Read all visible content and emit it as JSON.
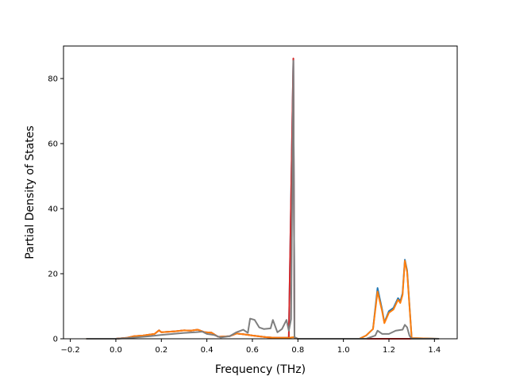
{
  "chart_data": {
    "type": "line",
    "title": "",
    "xlabel": "Frequency (THz)",
    "ylabel": "Partial Density of States",
    "xlim": [
      -0.23,
      1.5
    ],
    "ylim": [
      0,
      90
    ],
    "xticks": [
      -0.2,
      0.0,
      0.2,
      0.4,
      0.6,
      0.8,
      1.0,
      1.2,
      1.4
    ],
    "xtick_labels": [
      "−0.2",
      "0.0",
      "0.2",
      "0.4",
      "0.6",
      "0.8",
      "1.0",
      "1.2",
      "1.4"
    ],
    "yticks": [
      0,
      20,
      40,
      60,
      80
    ],
    "ytick_labels": [
      "0",
      "20",
      "40",
      "60",
      "80"
    ],
    "grid": false,
    "legend": "none",
    "series": [
      {
        "color": "#1f77b4",
        "points": [
          [
            -0.13,
            0
          ],
          [
            0.0,
            0
          ],
          [
            0.05,
            0.3
          ],
          [
            0.08,
            0.8
          ],
          [
            0.12,
            1.0
          ],
          [
            0.17,
            1.5
          ],
          [
            0.19,
            2.6
          ],
          [
            0.2,
            2.0
          ],
          [
            0.26,
            2.3
          ],
          [
            0.3,
            2.6
          ],
          [
            0.33,
            2.5
          ],
          [
            0.36,
            2.8
          ],
          [
            0.39,
            2.0
          ],
          [
            0.42,
            1.9
          ],
          [
            0.45,
            0.6
          ],
          [
            0.5,
            0.8
          ],
          [
            0.53,
            1.6
          ],
          [
            0.56,
            1.4
          ],
          [
            0.6,
            1.0
          ],
          [
            0.66,
            0.5
          ],
          [
            0.7,
            0.3
          ],
          [
            0.76,
            0.3
          ],
          [
            0.78,
            86
          ],
          [
            0.785,
            0.4
          ],
          [
            0.8,
            0
          ],
          [
            1.07,
            0
          ],
          [
            1.1,
            1.0
          ],
          [
            1.13,
            3.0
          ],
          [
            1.15,
            15.6
          ],
          [
            1.17,
            9.0
          ],
          [
            1.18,
            5.0
          ],
          [
            1.2,
            8.5
          ],
          [
            1.22,
            9.5
          ],
          [
            1.24,
            12.5
          ],
          [
            1.25,
            11.5
          ],
          [
            1.26,
            14.0
          ],
          [
            1.27,
            24.3
          ],
          [
            1.28,
            21.0
          ],
          [
            1.3,
            0.2
          ],
          [
            1.42,
            0
          ]
        ]
      },
      {
        "color": "#d62728",
        "points": [
          [
            -0.13,
            0
          ],
          [
            0.0,
            0
          ],
          [
            0.05,
            0.3
          ],
          [
            0.08,
            0.8
          ],
          [
            0.12,
            1.0
          ],
          [
            0.17,
            1.5
          ],
          [
            0.19,
            2.6
          ],
          [
            0.2,
            2.0
          ],
          [
            0.26,
            2.3
          ],
          [
            0.3,
            2.6
          ],
          [
            0.33,
            2.5
          ],
          [
            0.36,
            2.8
          ],
          [
            0.39,
            2.0
          ],
          [
            0.42,
            1.9
          ],
          [
            0.45,
            0.6
          ],
          [
            0.5,
            0.8
          ],
          [
            0.53,
            1.6
          ],
          [
            0.56,
            1.4
          ],
          [
            0.6,
            1.0
          ],
          [
            0.66,
            0.5
          ],
          [
            0.7,
            0.3
          ],
          [
            0.76,
            0.3
          ],
          [
            0.78,
            86.2
          ],
          [
            0.785,
            0.4
          ],
          [
            0.8,
            0
          ],
          [
            1.07,
            0
          ],
          [
            1.42,
            0
          ]
        ]
      },
      {
        "color": "#ff7f0e",
        "points": [
          [
            -0.13,
            0
          ],
          [
            0.0,
            0
          ],
          [
            0.05,
            0.3
          ],
          [
            0.08,
            0.8
          ],
          [
            0.12,
            1.0
          ],
          [
            0.17,
            1.5
          ],
          [
            0.19,
            2.6
          ],
          [
            0.2,
            2.0
          ],
          [
            0.26,
            2.3
          ],
          [
            0.3,
            2.6
          ],
          [
            0.33,
            2.5
          ],
          [
            0.36,
            2.8
          ],
          [
            0.39,
            2.0
          ],
          [
            0.42,
            1.9
          ],
          [
            0.45,
            0.6
          ],
          [
            0.5,
            0.8
          ],
          [
            0.53,
            1.6
          ],
          [
            0.56,
            1.4
          ],
          [
            0.6,
            1.0
          ],
          [
            0.66,
            0.5
          ],
          [
            0.7,
            0.3
          ],
          [
            0.76,
            0.3
          ],
          [
            0.78,
            0.5
          ],
          [
            0.8,
            0
          ],
          [
            1.07,
            0
          ],
          [
            1.1,
            1.0
          ],
          [
            1.13,
            3.0
          ],
          [
            1.15,
            14.5
          ],
          [
            1.17,
            8.5
          ],
          [
            1.18,
            4.8
          ],
          [
            1.2,
            8.0
          ],
          [
            1.22,
            9.0
          ],
          [
            1.24,
            12.0
          ],
          [
            1.25,
            11.0
          ],
          [
            1.26,
            13.5
          ],
          [
            1.27,
            24.0
          ],
          [
            1.28,
            20.5
          ],
          [
            1.3,
            0.2
          ],
          [
            1.42,
            0
          ]
        ]
      },
      {
        "color": "#7f7f7f",
        "points": [
          [
            -0.13,
            0
          ],
          [
            0.0,
            0
          ],
          [
            0.05,
            0.2
          ],
          [
            0.1,
            0.5
          ],
          [
            0.15,
            0.8
          ],
          [
            0.2,
            1.2
          ],
          [
            0.25,
            1.5
          ],
          [
            0.3,
            1.8
          ],
          [
            0.35,
            2.0
          ],
          [
            0.38,
            2.2
          ],
          [
            0.4,
            1.5
          ],
          [
            0.43,
            1.2
          ],
          [
            0.46,
            0.4
          ],
          [
            0.5,
            0.8
          ],
          [
            0.53,
            2.0
          ],
          [
            0.56,
            2.8
          ],
          [
            0.58,
            1.8
          ],
          [
            0.59,
            6.2
          ],
          [
            0.61,
            5.8
          ],
          [
            0.63,
            3.5
          ],
          [
            0.65,
            3.0
          ],
          [
            0.68,
            3.2
          ],
          [
            0.69,
            5.8
          ],
          [
            0.71,
            2.0
          ],
          [
            0.73,
            3.0
          ],
          [
            0.75,
            5.8
          ],
          [
            0.76,
            2.5
          ],
          [
            0.77,
            6.0
          ],
          [
            0.78,
            85.5
          ],
          [
            0.785,
            0.5
          ],
          [
            0.8,
            0
          ],
          [
            1.1,
            0
          ],
          [
            1.14,
            1.0
          ],
          [
            1.15,
            2.5
          ],
          [
            1.17,
            1.5
          ],
          [
            1.2,
            1.5
          ],
          [
            1.23,
            2.5
          ],
          [
            1.26,
            2.8
          ],
          [
            1.27,
            4.3
          ],
          [
            1.28,
            3.5
          ],
          [
            1.29,
            1.0
          ],
          [
            1.3,
            0
          ],
          [
            1.42,
            0
          ]
        ]
      }
    ]
  }
}
